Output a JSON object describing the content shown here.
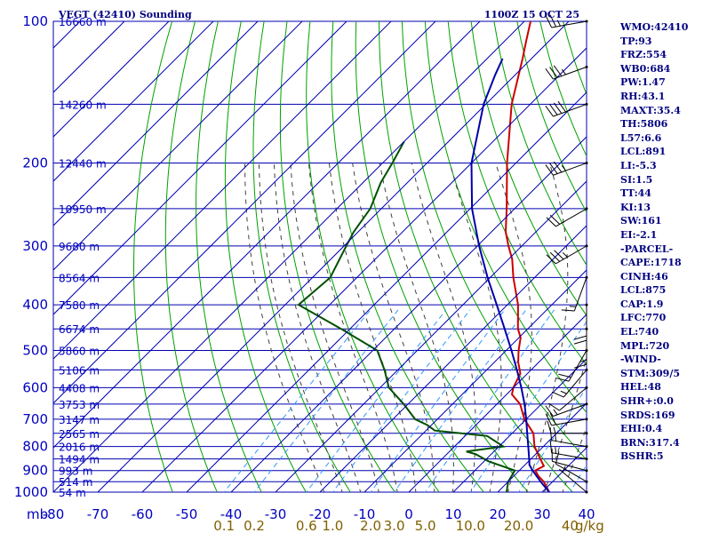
{
  "header": {
    "station": "VEGT (42410) Sounding",
    "time": "1100Z 15 OCT 25"
  },
  "colors": {
    "grid": "#0000b0",
    "dry_adiabat": "#00a000",
    "moist_adiabat": "#404040",
    "mixing_ratio": "#3399ff",
    "temperature": "#cc0000",
    "dewpoint": "#005000",
    "parcel": "#0000aa",
    "wind": "#000000",
    "labels": "#0000c0",
    "stats": "#000080"
  },
  "chart_data": {
    "type": "line",
    "chart_kind": "skew-T log-P sounding",
    "y_axis": {
      "unit_label": "mb",
      "scale": "log-pressure",
      "range": [
        1000,
        100
      ],
      "ticks": [
        100,
        200,
        300,
        400,
        500,
        600,
        700,
        800,
        900,
        1000
      ]
    },
    "x_axis": {
      "range": [
        -80,
        40
      ],
      "ticks": [
        -80,
        -70,
        -60,
        -50,
        -40,
        -30,
        -20,
        -10,
        0,
        10,
        20,
        30,
        40
      ],
      "skew": "45 degrees"
    },
    "heights": [
      {
        "p": 100,
        "label": "16660 m"
      },
      {
        "p": 150,
        "label": "14260 m"
      },
      {
        "p": 200,
        "label": "12440 m"
      },
      {
        "p": 250,
        "label": "10950 m"
      },
      {
        "p": 300,
        "label": "9680 m"
      },
      {
        "p": 350,
        "label": "8564 m"
      },
      {
        "p": 400,
        "label": "7580 m"
      },
      {
        "p": 450,
        "label": "6674 m"
      },
      {
        "p": 500,
        "label": "5860 m"
      },
      {
        "p": 550,
        "label": "5106 m"
      },
      {
        "p": 600,
        "label": "4408 m"
      },
      {
        "p": 650,
        "label": "3753 m"
      },
      {
        "p": 700,
        "label": "3147 m"
      },
      {
        "p": 750,
        "label": "2565 m"
      },
      {
        "p": 800,
        "label": "2016 m"
      },
      {
        "p": 850,
        "label": "1494 m"
      },
      {
        "p": 900,
        "label": "993 m"
      },
      {
        "p": 950,
        "label": "514 m"
      },
      {
        "p": 1000,
        "label": "54 m"
      }
    ],
    "mixing_ratio_labels": [
      "0.1",
      "0.2",
      "0.6",
      "1.0",
      "2.0",
      "3.0",
      "5.0",
      "10.0",
      "20.0",
      "40",
      "g/kg"
    ],
    "mixing_ratio_values": [
      0.1,
      0.2,
      0.6,
      1.0,
      2.0,
      3.0,
      5.0,
      10.0,
      20.0,
      40
    ],
    "series": [
      {
        "key": "temperature",
        "points": [
          [
            1000,
            31.6
          ],
          [
            950,
            28.0
          ],
          [
            925,
            25.6
          ],
          [
            900,
            23.6
          ],
          [
            880,
            24.5
          ],
          [
            850,
            22.1
          ],
          [
            800,
            18.0
          ],
          [
            750,
            14.8
          ],
          [
            700,
            9.6
          ],
          [
            650,
            5.2
          ],
          [
            620,
            1.2
          ],
          [
            600,
            0.0
          ],
          [
            580,
            -0.8
          ],
          [
            560,
            -1.6
          ],
          [
            530,
            -4.6
          ],
          [
            500,
            -7.2
          ],
          [
            470,
            -9.6
          ],
          [
            450,
            -12.2
          ],
          [
            400,
            -17.6
          ],
          [
            350,
            -24.8
          ],
          [
            320,
            -29.2
          ],
          [
            300,
            -33.0
          ],
          [
            280,
            -36.8
          ],
          [
            250,
            -41.8
          ],
          [
            200,
            -52.0
          ],
          [
            150,
            -64.2
          ],
          [
            120,
            -72.0
          ],
          [
            110,
            -75.2
          ],
          [
            100,
            -78.6
          ]
        ]
      },
      {
        "key": "dewpoint",
        "points": [
          [
            1000,
            22.0
          ],
          [
            950,
            20.0
          ],
          [
            900,
            19.0
          ],
          [
            860,
            11.0
          ],
          [
            830,
            6.4
          ],
          [
            820,
            3.8
          ],
          [
            800,
            11.0
          ],
          [
            760,
            5.0
          ],
          [
            740,
            -8.0
          ],
          [
            720,
            -11.0
          ],
          [
            700,
            -15.0
          ],
          [
            650,
            -21.0
          ],
          [
            600,
            -28.0
          ],
          [
            550,
            -33.0
          ],
          [
            500,
            -39.0
          ],
          [
            450,
            -52.0
          ],
          [
            400,
            -67.0
          ],
          [
            350,
            -66.0
          ],
          [
            300,
            -69.5
          ],
          [
            280,
            -71.0
          ],
          [
            250,
            -72.5
          ],
          [
            220,
            -76.0
          ],
          [
            200,
            -77.8
          ],
          [
            180,
            -80.0
          ]
        ]
      },
      {
        "key": "parcel",
        "points": [
          [
            1000,
            31.6
          ],
          [
            950,
            27.3
          ],
          [
            900,
            23.0
          ],
          [
            875,
            21.0
          ],
          [
            850,
            19.6
          ],
          [
            800,
            16.6
          ],
          [
            750,
            13.4
          ],
          [
            700,
            10.0
          ],
          [
            650,
            6.2
          ],
          [
            600,
            1.8
          ],
          [
            550,
            -3.2
          ],
          [
            500,
            -8.8
          ],
          [
            450,
            -15.2
          ],
          [
            400,
            -22.4
          ],
          [
            350,
            -30.6
          ],
          [
            300,
            -39.6
          ],
          [
            250,
            -49.6
          ],
          [
            200,
            -60.0
          ],
          [
            150,
            -70.5
          ],
          [
            130,
            -74.5
          ],
          [
            120,
            -76.5
          ]
        ]
      }
    ],
    "wind_barbs": [
      {
        "p": 1000,
        "dir": 310,
        "spd": 5
      },
      {
        "p": 950,
        "dir": 300,
        "spd": 10
      },
      {
        "p": 900,
        "dir": 285,
        "spd": 10
      },
      {
        "p": 850,
        "dir": 280,
        "spd": 15
      },
      {
        "p": 800,
        "dir": 280,
        "spd": 15
      },
      {
        "p": 750,
        "dir": 270,
        "spd": 15
      },
      {
        "p": 700,
        "dir": 260,
        "spd": 20
      },
      {
        "p": 650,
        "dir": 250,
        "spd": 15
      },
      {
        "p": 600,
        "dir": 230,
        "spd": 10
      },
      {
        "p": 550,
        "dir": 220,
        "spd": 15
      },
      {
        "p": 500,
        "dir": 210,
        "spd": 20
      },
      {
        "p": 450,
        "dir": 180,
        "spd": 15
      },
      {
        "p": 400,
        "dir": 180,
        "spd": 20
      },
      {
        "p": 350,
        "dir": 200,
        "spd": 15
      },
      {
        "p": 300,
        "dir": 240,
        "spd": 35
      },
      {
        "p": 250,
        "dir": 240,
        "spd": 20
      },
      {
        "p": 200,
        "dir": 250,
        "spd": 35
      },
      {
        "p": 150,
        "dir": 250,
        "spd": 40
      },
      {
        "p": 125,
        "dir": 250,
        "spd": 35
      },
      {
        "p": 100,
        "dir": 260,
        "spd": 25
      }
    ]
  },
  "stats": [
    "WMO:42410",
    "TP:93",
    "FRZ:554",
    "WB0:684",
    "PW:1.47",
    "RH:43.1",
    "MAXT:35.4",
    "TH:5806",
    "L57:6.6",
    "LCL:891",
    "LI:-5.3",
    "SI:1.5",
    "TT:44",
    "KI:13",
    "SW:161",
    "EI:-2.1",
    "-PARCEL-",
    "CAPE:1718",
    "CINH:46",
    "LCL:875",
    "CAP:1.9",
    "LFC:770",
    "EL:740",
    "MPL:720",
    "-WIND-",
    "STM:309/5",
    "HEL:48",
    "SHR+:0.0",
    "SRDS:169",
    "EHI:0.4",
    "BRN:317.4",
    "BSHR:5"
  ]
}
